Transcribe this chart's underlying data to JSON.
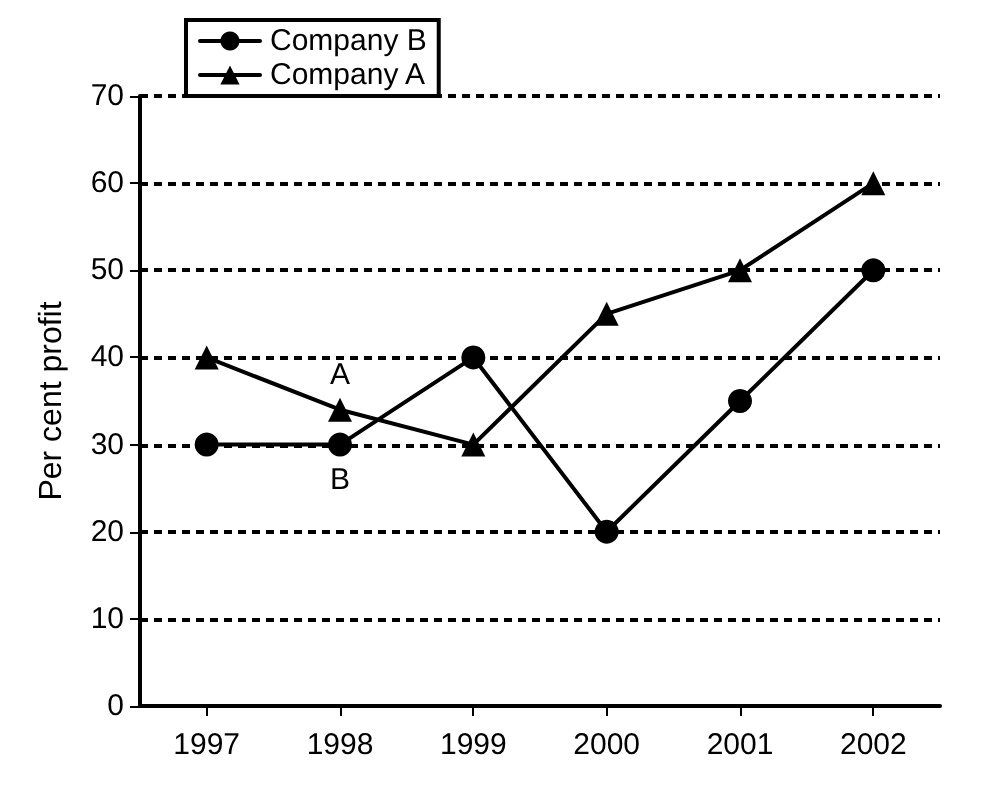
{
  "chart_data": {
    "type": "line",
    "ylabel": "Per cent profit",
    "categories": [
      "1997",
      "1998",
      "1999",
      "2000",
      "2001",
      "2002"
    ],
    "series": [
      {
        "name": "Company B",
        "color": "#000000",
        "marker": "circle",
        "values": [
          30,
          30,
          40,
          20,
          35,
          50
        ]
      },
      {
        "name": "Company A",
        "color": "#000000",
        "marker": "triangle",
        "values": [
          40,
          34,
          30,
          45,
          50,
          60
        ]
      }
    ],
    "ylim": [
      0,
      70
    ],
    "yticks": [
      0,
      10,
      20,
      30,
      40,
      50,
      60,
      70
    ],
    "grid": "y",
    "legend": "top left",
    "line_style": "solid",
    "annotations": [
      {
        "text": "A",
        "x": "1998",
        "y": 34
      },
      {
        "text": "B",
        "x": "1998",
        "y": 30
      }
    ]
  }
}
